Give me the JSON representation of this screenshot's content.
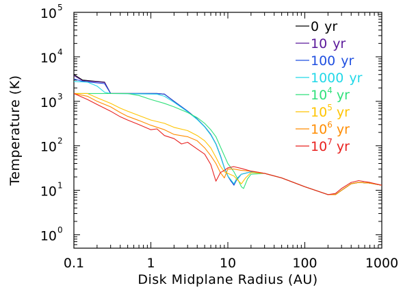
{
  "chart_data": {
    "type": "line",
    "xlabel": "Disk Midplane Radius (AU)",
    "ylabel": "Temperature (K)",
    "xscale": "log",
    "yscale": "log",
    "xlim": [
      0.1,
      1000
    ],
    "ylim": [
      0.5,
      100000
    ],
    "xticks": [
      {
        "value": 0.1,
        "label": "0.1"
      },
      {
        "value": 1,
        "label": "1"
      },
      {
        "value": 10,
        "label": "10"
      },
      {
        "value": 100,
        "label": "100"
      },
      {
        "value": 1000,
        "label": "1000"
      }
    ],
    "yticks": [
      {
        "value": 1,
        "base": "10",
        "exp": "0"
      },
      {
        "value": 10,
        "base": "10",
        "exp": "1"
      },
      {
        "value": 100,
        "base": "10",
        "exp": "2"
      },
      {
        "value": 1000,
        "base": "10",
        "exp": "3"
      },
      {
        "value": 10000,
        "base": "10",
        "exp": "4"
      },
      {
        "value": 100000,
        "base": "10",
        "exp": "5"
      }
    ],
    "legend_position": "top-right",
    "series": [
      {
        "name": "0 yr",
        "label_base": "0",
        "label_exp": "",
        "label_unit": "yr",
        "color": "#000000",
        "x": [
          0.1,
          0.13,
          0.2,
          0.25,
          0.3,
          1.2,
          1.5,
          2,
          3,
          4,
          5,
          6,
          7,
          8,
          9,
          10,
          11,
          12,
          13,
          15,
          20,
          30,
          50,
          100,
          200,
          250,
          300,
          400,
          500,
          700,
          1000
        ],
        "y": [
          4000,
          3000,
          2800,
          2700,
          1500,
          1500,
          1450,
          1000,
          600,
          400,
          270,
          180,
          110,
          60,
          32,
          21,
          16,
          14,
          18,
          23,
          26,
          24,
          19,
          12,
          8,
          8,
          10,
          14,
          15,
          14.5,
          13
        ]
      },
      {
        "name": "10 yr",
        "label_base": "10",
        "label_exp": "",
        "label_unit": "yr",
        "color": "#5a189a",
        "x": [
          0.1,
          0.13,
          0.2,
          0.25,
          0.3,
          1.2,
          1.5,
          2,
          3,
          4,
          5,
          6,
          7,
          8,
          9,
          10,
          11,
          12,
          13,
          15,
          20,
          30,
          50,
          100,
          200,
          250,
          300,
          400,
          500,
          700,
          1000
        ],
        "y": [
          3800,
          2900,
          2750,
          2650,
          1500,
          1500,
          1450,
          1000,
          600,
          400,
          270,
          180,
          110,
          60,
          32,
          21,
          16,
          13.5,
          18,
          23,
          26,
          24,
          19,
          12,
          8,
          8,
          10,
          14,
          15,
          14.5,
          13
        ]
      },
      {
        "name": "100 yr",
        "label_base": "100",
        "label_exp": "",
        "label_unit": "yr",
        "color": "#1f4fe0",
        "x": [
          0.1,
          0.13,
          0.2,
          0.25,
          0.3,
          1.2,
          1.5,
          2,
          3,
          4,
          5,
          6,
          7,
          8,
          9,
          10,
          11,
          12,
          13,
          15,
          20,
          30,
          50,
          100,
          200,
          250,
          300,
          400,
          500,
          700,
          1000
        ],
        "y": [
          3200,
          2800,
          2600,
          2500,
          1500,
          1500,
          1450,
          1000,
          600,
          400,
          270,
          180,
          110,
          60,
          32,
          21,
          16,
          13,
          17,
          23,
          26,
          24,
          19,
          12,
          8,
          8,
          10,
          14,
          15,
          14.5,
          13
        ]
      },
      {
        "name": "1000 yr",
        "label_base": "1000",
        "label_exp": "",
        "label_unit": "yr",
        "color": "#22d8e8",
        "x": [
          0.1,
          0.15,
          0.2,
          0.25,
          0.3,
          1.2,
          1.5,
          2,
          3,
          4,
          5,
          6,
          7,
          8,
          9,
          10,
          11,
          12,
          13,
          15,
          20,
          30,
          50,
          100,
          200,
          250,
          300,
          400,
          500,
          700,
          1000
        ],
        "y": [
          2800,
          2700,
          2200,
          1600,
          1500,
          1450,
          1300,
          950,
          580,
          390,
          265,
          175,
          108,
          58,
          32,
          21,
          17,
          14,
          18,
          23,
          26,
          24,
          19,
          12,
          8,
          8,
          10,
          14,
          15,
          14.5,
          13
        ]
      },
      {
        "name": "10^4 yr",
        "label_base": "10",
        "label_exp": "4",
        "label_unit": "yr",
        "color": "#2fe07a",
        "x": [
          0.1,
          0.15,
          0.2,
          0.3,
          0.5,
          0.7,
          1,
          1.5,
          2,
          3,
          4,
          5,
          6,
          7,
          8,
          9,
          10,
          12,
          13,
          15,
          16,
          18,
          20,
          30,
          50,
          100,
          200,
          250,
          300,
          400,
          500,
          700,
          1000
        ],
        "y": [
          1500,
          1500,
          1500,
          1500,
          1500,
          1350,
          1100,
          900,
          750,
          560,
          430,
          320,
          230,
          160,
          95,
          60,
          40,
          26,
          20,
          12,
          11,
          18,
          23,
          24,
          19,
          12,
          8,
          8,
          10,
          14,
          15,
          14.5,
          13
        ]
      },
      {
        "name": "10^5 yr",
        "label_base": "10",
        "label_exp": "5",
        "label_unit": "yr",
        "color": "#ffc400",
        "x": [
          0.1,
          0.15,
          0.2,
          0.3,
          0.4,
          0.5,
          0.7,
          1,
          1.5,
          2,
          3,
          4,
          5,
          6,
          7,
          8,
          9,
          10,
          12,
          13,
          15,
          17,
          20,
          30,
          50,
          100,
          200,
          250,
          300,
          400,
          500,
          700,
          1000
        ],
        "y": [
          1500,
          1500,
          1200,
          900,
          700,
          600,
          480,
          380,
          320,
          260,
          220,
          170,
          130,
          90,
          55,
          35,
          26,
          24,
          21,
          18,
          14,
          19,
          25,
          24,
          19,
          12,
          8,
          8,
          10,
          14,
          15,
          14.5,
          13
        ]
      },
      {
        "name": "10^6 yr",
        "label_base": "10",
        "label_exp": "6",
        "label_unit": "yr",
        "color": "#ff8c00",
        "x": [
          0.1,
          0.15,
          0.2,
          0.3,
          0.4,
          0.5,
          0.7,
          1,
          1.5,
          2,
          3,
          4,
          5,
          6,
          7,
          8,
          9,
          10,
          12,
          15,
          20,
          30,
          50,
          100,
          200,
          250,
          300,
          400,
          500,
          700,
          1000
        ],
        "y": [
          1500,
          1300,
          1000,
          750,
          560,
          460,
          370,
          290,
          230,
          180,
          160,
          130,
          90,
          60,
          40,
          25,
          19,
          30,
          30,
          28,
          27,
          24,
          19,
          12,
          8,
          8,
          10,
          14,
          15,
          14.5,
          13
        ]
      },
      {
        "name": "10^7 yr",
        "label_base": "10",
        "label_exp": "7",
        "label_unit": "yr",
        "color": "#e8201e",
        "x": [
          0.1,
          0.15,
          0.2,
          0.3,
          0.4,
          0.5,
          0.7,
          1,
          1.2,
          1.5,
          2,
          2.5,
          3,
          4,
          5,
          6,
          6.5,
          7,
          7.5,
          8,
          9,
          10,
          12,
          15,
          20,
          30,
          50,
          100,
          200,
          250,
          300,
          400,
          500,
          700,
          1000
        ],
        "y": [
          1500,
          1100,
          850,
          600,
          450,
          380,
          300,
          230,
          240,
          170,
          145,
          110,
          120,
          85,
          65,
          38,
          24,
          16,
          20,
          25,
          28,
          32,
          34,
          31,
          27,
          24,
          19,
          12,
          8,
          8.5,
          11,
          15,
          16.5,
          15,
          13
        ]
      }
    ]
  }
}
